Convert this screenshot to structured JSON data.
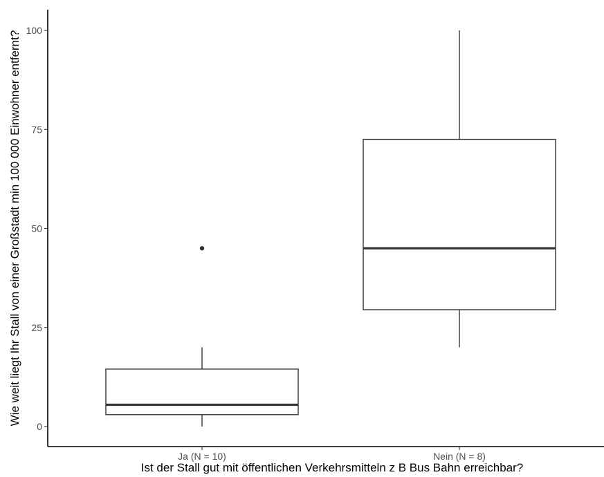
{
  "chart_data": {
    "type": "boxplot",
    "xlabel": "Ist der Stall gut mit öffentlichen Verkehrsmitteln z B Bus Bahn erreichbar?",
    "ylabel": "Wie weit liegt Ihr Stall von einer Großstadt min 100 000 Einwohner entfernt?",
    "ylim": [
      0,
      100
    ],
    "yticks": [
      0,
      25,
      50,
      75,
      100
    ],
    "grid": false,
    "categories": [
      "Ja (N = 10)",
      "Nein (N = 8)"
    ],
    "boxes": [
      {
        "category": "Ja (N = 10)",
        "min": 0,
        "q1": 3,
        "median": 5.5,
        "q3": 14.5,
        "max": 20,
        "outliers": [
          45
        ]
      },
      {
        "category": "Nein (N = 8)",
        "min": 20,
        "q1": 29.5,
        "median": 45,
        "q3": 72.5,
        "max": 100,
        "outliers": []
      }
    ]
  }
}
